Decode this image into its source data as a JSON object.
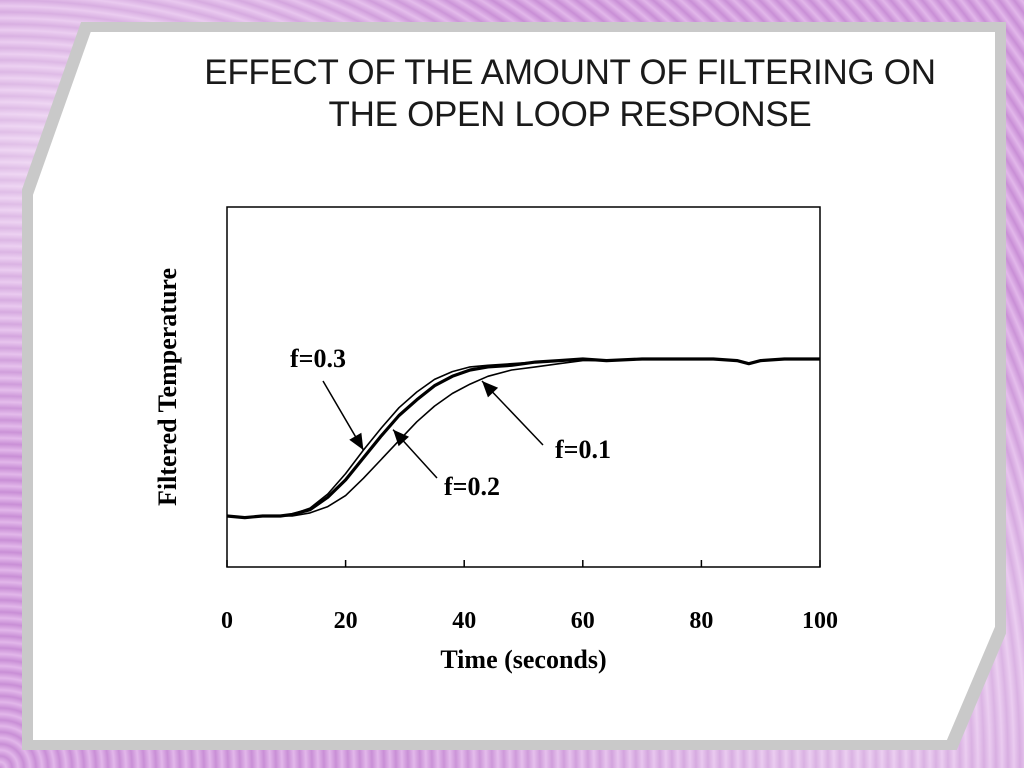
{
  "slide": {
    "title_line1": "EFFECT OF THE AMOUNT OF FILTERING ON",
    "title_line2": "THE OPEN LOOP RESPONSE"
  },
  "chart_data": {
    "type": "line",
    "title": "",
    "xlabel": "Time (seconds)",
    "ylabel": "Filtered Temperature",
    "xlim": [
      0,
      100
    ],
    "ylim": [
      -0.2,
      1.1
    ],
    "x_ticks": [
      0,
      20,
      40,
      60,
      80,
      100
    ],
    "x_tick_labels": [
      "0",
      "20",
      "40",
      "60",
      "80",
      "100"
    ],
    "y_tick_labels": [],
    "grid": false,
    "legend": "none",
    "series": [
      {
        "name": "f=0.3",
        "x": [
          0,
          3,
          6,
          9,
          11,
          14,
          17,
          20,
          23,
          26,
          29,
          32,
          35,
          38,
          41,
          44,
          48,
          52,
          56,
          60,
          64,
          70,
          76,
          82,
          86,
          88,
          90,
          94,
          100
        ],
        "y": [
          0.0,
          -0.01,
          0.0,
          0.0,
          0.01,
          0.05,
          0.14,
          0.27,
          0.42,
          0.56,
          0.69,
          0.79,
          0.87,
          0.92,
          0.95,
          0.96,
          0.97,
          0.98,
          0.99,
          1.0,
          0.99,
          1.0,
          1.0,
          1.0,
          0.99,
          0.97,
          0.99,
          1.0,
          1.0
        ]
      },
      {
        "name": "f=0.2",
        "x": [
          0,
          3,
          6,
          9,
          11,
          14,
          17,
          20,
          23,
          26,
          29,
          32,
          35,
          38,
          41,
          44,
          48,
          52,
          56,
          60,
          64,
          70,
          76,
          82,
          86,
          88,
          90,
          94,
          100
        ],
        "y": [
          0.0,
          -0.01,
          0.0,
          0.0,
          0.01,
          0.04,
          0.12,
          0.23,
          0.37,
          0.51,
          0.64,
          0.74,
          0.83,
          0.89,
          0.93,
          0.95,
          0.96,
          0.98,
          0.99,
          1.0,
          0.99,
          1.0,
          1.0,
          1.0,
          0.99,
          0.97,
          0.99,
          1.0,
          1.0
        ]
      },
      {
        "name": "f=0.1",
        "x": [
          0,
          3,
          6,
          9,
          11,
          14,
          17,
          20,
          23,
          26,
          29,
          32,
          35,
          38,
          41,
          44,
          48,
          52,
          56,
          60,
          64,
          70,
          76,
          82,
          86,
          88,
          90,
          94,
          100
        ],
        "y": [
          0.0,
          -0.01,
          0.0,
          0.0,
          0.0,
          0.02,
          0.06,
          0.13,
          0.24,
          0.36,
          0.48,
          0.6,
          0.7,
          0.78,
          0.84,
          0.89,
          0.93,
          0.95,
          0.97,
          0.99,
          0.99,
          1.0,
          1.0,
          1.0,
          0.99,
          0.97,
          0.99,
          1.0,
          1.0
        ]
      }
    ],
    "annotations": [
      {
        "text": "f=0.3",
        "series": "f=0.3",
        "point_x": 23,
        "point_y": 0.42
      },
      {
        "text": "f=0.2",
        "series": "f=0.2",
        "point_x": 28,
        "point_y": 0.55
      },
      {
        "text": "f=0.1",
        "series": "f=0.1",
        "point_x": 43,
        "point_y": 0.86
      }
    ]
  }
}
